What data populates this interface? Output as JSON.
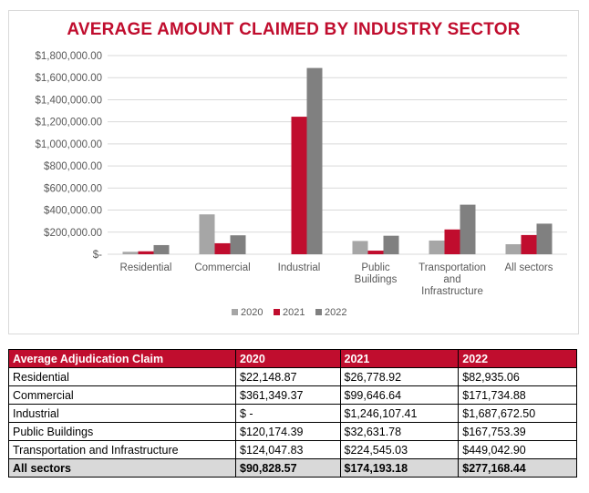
{
  "chart_data": {
    "type": "bar",
    "title": "AVERAGE AMOUNT CLAIMED BY INDUSTRY SECTOR",
    "categories": [
      "Residential",
      "Commercial",
      "Industrial",
      "Public Buildings",
      "Transportation and Infrastructure",
      "All sectors"
    ],
    "category_label_lines": [
      [
        "Residential"
      ],
      [
        "Commercial"
      ],
      [
        "Industrial"
      ],
      [
        "Public",
        "Buildings"
      ],
      [
        "Transportation",
        "and",
        "Infrastructure"
      ],
      [
        "All sectors"
      ]
    ],
    "series": [
      {
        "name": "2020",
        "color": "#a6a6a6",
        "values": [
          22148.87,
          361349.37,
          0,
          120174.39,
          124047.83,
          90828.57
        ]
      },
      {
        "name": "2021",
        "color": "#c00d2e",
        "values": [
          26778.92,
          99646.64,
          1246107.41,
          32631.78,
          224545.03,
          174193.18
        ]
      },
      {
        "name": "2022",
        "color": "#808080",
        "values": [
          82935.06,
          171734.88,
          1687672.5,
          167753.39,
          449042.9,
          277168.44
        ]
      }
    ],
    "ylim": [
      0,
      1800000
    ],
    "yticks": [
      0,
      200000,
      400000,
      600000,
      800000,
      1000000,
      1200000,
      1400000,
      1600000,
      1800000
    ],
    "ytick_labels": [
      "$-",
      "$200,000.00",
      "$400,000.00",
      "$600,000.00",
      "$800,000.00",
      "$1,000,000.00",
      "$1,200,000.00",
      "$1,400,000.00",
      "$1,600,000.00",
      "$1,800,000.00"
    ],
    "grid": true,
    "legend_position": "bottom",
    "xlabel": "",
    "ylabel": ""
  },
  "table": {
    "headers": [
      "Average Adjudication Claim",
      "2020",
      "2021",
      "2022"
    ],
    "rows": [
      [
        "Residential",
        "$22,148.87",
        "$26,778.92",
        "$82,935.06"
      ],
      [
        "Commercial",
        "$361,349.37",
        "$99,646.64",
        "$171,734.88"
      ],
      [
        "Industrial",
        "$ -",
        "$1,246,107.41",
        "$1,687,672.50"
      ],
      [
        "Public Buildings",
        "$120,174.39",
        "$32,631.78",
        "$167,753.39"
      ],
      [
        "Transportation and Infrastructure",
        "$124,047.83",
        "$224,545.03",
        "$449,042.90"
      ]
    ],
    "total_row": [
      "All sectors",
      "$90,828.57",
      "$174,193.18",
      "$277,168.44"
    ]
  },
  "colors": {
    "accent": "#c00d2e",
    "total_row_bg": "#d9d9d9",
    "grid": "#d9d9d9"
  }
}
